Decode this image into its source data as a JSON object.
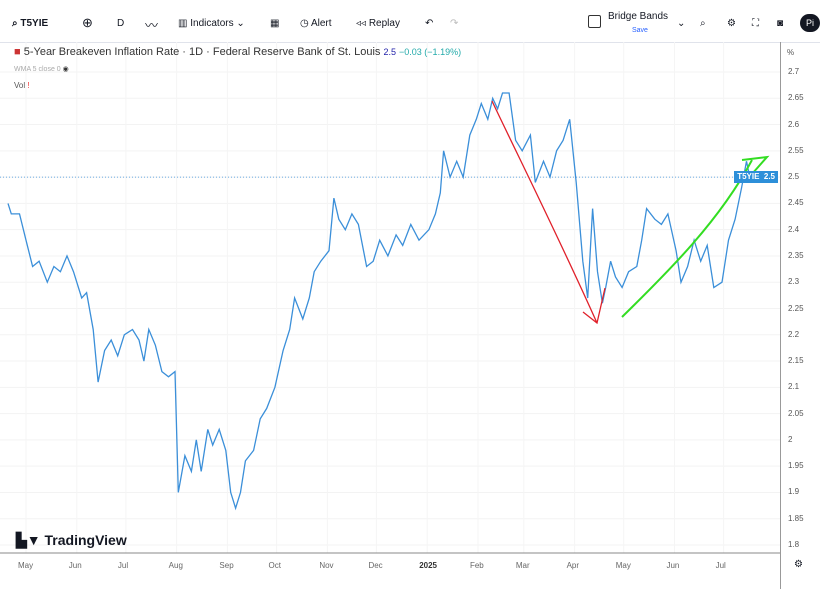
{
  "toolbar": {
    "symbol": "T5YIE",
    "interval": "D",
    "indicators": "Indicators",
    "alert": "Alert",
    "replay": "Replay",
    "layout_name": "Bridge Bands",
    "layout_sub": "Save",
    "avatar": "Pi"
  },
  "legend": {
    "title": "5-Year Breakeven Inflation Rate · 1D · Federal Reserve Bank of St. Louis",
    "last": "2.5",
    "change": "−0.03 (−1.19%)",
    "indicator": "WMA 5 close 0",
    "vol": "Vol"
  },
  "brand": "TradingView",
  "colors": {
    "line": "#3b8fd9",
    "red_drawing": "#e0202a",
    "green_drawing": "#33dd22",
    "price_label": "#2d8fd9"
  },
  "chart_data": {
    "type": "line",
    "ylabel": "%",
    "ylim": [
      1.8,
      2.7
    ],
    "xlim": [
      "2024-04-20",
      "2025-07-22"
    ],
    "grid": true,
    "yticks": [
      "2.7",
      "2.65",
      "2.6",
      "2.55",
      "2.5",
      "2.45",
      "2.4",
      "2.35",
      "2.3",
      "2.25",
      "2.2",
      "2.15",
      "2.1",
      "2.05",
      "2",
      "1.95",
      "1.9",
      "1.85",
      "1.8"
    ],
    "xticks": [
      {
        "label": "May",
        "date": "2024-05-01"
      },
      {
        "label": "Jun",
        "date": "2024-06-01"
      },
      {
        "label": "Jul",
        "date": "2024-07-01"
      },
      {
        "label": "Aug",
        "date": "2024-08-01"
      },
      {
        "label": "Sep",
        "date": "2024-09-01"
      },
      {
        "label": "Oct",
        "date": "2024-10-01"
      },
      {
        "label": "Nov",
        "date": "2024-11-01"
      },
      {
        "label": "Dec",
        "date": "2024-12-01"
      },
      {
        "label": "2025",
        "date": "2025-01-01"
      },
      {
        "label": "Feb",
        "date": "2025-02-01"
      },
      {
        "label": "Mar",
        "date": "2025-03-01"
      },
      {
        "label": "Apr",
        "date": "2025-04-01"
      },
      {
        "label": "May",
        "date": "2025-05-01"
      },
      {
        "label": "Jun",
        "date": "2025-06-01"
      },
      {
        "label": "Jul",
        "date": "2025-07-01"
      }
    ],
    "price_label": {
      "symbol": "T5YIE",
      "value": "2.5"
    },
    "series": [
      {
        "points": [
          [
            "2024-04-20",
            2.45
          ],
          [
            "2024-04-22",
            2.43
          ],
          [
            "2024-04-27",
            2.43
          ],
          [
            "2024-05-01",
            2.38
          ],
          [
            "2024-05-05",
            2.33
          ],
          [
            "2024-05-09",
            2.34
          ],
          [
            "2024-05-14",
            2.3
          ],
          [
            "2024-05-18",
            2.33
          ],
          [
            "2024-05-22",
            2.32
          ],
          [
            "2024-05-26",
            2.35
          ],
          [
            "2024-05-30",
            2.32
          ],
          [
            "2024-06-04",
            2.27
          ],
          [
            "2024-06-07",
            2.28
          ],
          [
            "2024-06-11",
            2.21
          ],
          [
            "2024-06-14",
            2.11
          ],
          [
            "2024-06-18",
            2.17
          ],
          [
            "2024-06-22",
            2.19
          ],
          [
            "2024-06-26",
            2.16
          ],
          [
            "2024-06-30",
            2.2
          ],
          [
            "2024-07-05",
            2.21
          ],
          [
            "2024-07-09",
            2.19
          ],
          [
            "2024-07-12",
            2.15
          ],
          [
            "2024-07-15",
            2.21
          ],
          [
            "2024-07-19",
            2.18
          ],
          [
            "2024-07-23",
            2.13
          ],
          [
            "2024-07-27",
            2.12
          ],
          [
            "2024-07-31",
            2.13
          ],
          [
            "2024-08-02",
            1.9
          ],
          [
            "2024-08-06",
            1.97
          ],
          [
            "2024-08-10",
            1.94
          ],
          [
            "2024-08-13",
            2.0
          ],
          [
            "2024-08-16",
            1.94
          ],
          [
            "2024-08-20",
            2.02
          ],
          [
            "2024-08-23",
            1.99
          ],
          [
            "2024-08-27",
            2.02
          ],
          [
            "2024-08-31",
            1.98
          ],
          [
            "2024-09-03",
            1.9
          ],
          [
            "2024-09-06",
            1.87
          ],
          [
            "2024-09-09",
            1.9
          ],
          [
            "2024-09-12",
            1.96
          ],
          [
            "2024-09-17",
            1.98
          ],
          [
            "2024-09-21",
            2.04
          ],
          [
            "2024-09-25",
            2.06
          ],
          [
            "2024-09-30",
            2.1
          ],
          [
            "2024-10-05",
            2.17
          ],
          [
            "2024-10-09",
            2.21
          ],
          [
            "2024-10-12",
            2.27
          ],
          [
            "2024-10-17",
            2.23
          ],
          [
            "2024-10-21",
            2.27
          ],
          [
            "2024-10-24",
            2.32
          ],
          [
            "2024-10-28",
            2.34
          ],
          [
            "2024-11-02",
            2.36
          ],
          [
            "2024-11-05",
            2.46
          ],
          [
            "2024-11-08",
            2.42
          ],
          [
            "2024-11-12",
            2.4
          ],
          [
            "2024-11-16",
            2.43
          ],
          [
            "2024-11-20",
            2.41
          ],
          [
            "2024-11-25",
            2.33
          ],
          [
            "2024-11-29",
            2.34
          ],
          [
            "2024-12-03",
            2.38
          ],
          [
            "2024-12-08",
            2.35
          ],
          [
            "2024-12-13",
            2.39
          ],
          [
            "2024-12-17",
            2.37
          ],
          [
            "2024-12-22",
            2.41
          ],
          [
            "2024-12-27",
            2.38
          ],
          [
            "2025-01-02",
            2.4
          ],
          [
            "2025-01-06",
            2.43
          ],
          [
            "2025-01-09",
            2.47
          ],
          [
            "2025-01-11",
            2.55
          ],
          [
            "2025-01-15",
            2.5
          ],
          [
            "2025-01-19",
            2.53
          ],
          [
            "2025-01-23",
            2.5
          ],
          [
            "2025-01-27",
            2.58
          ],
          [
            "2025-01-31",
            2.61
          ],
          [
            "2025-02-03",
            2.64
          ],
          [
            "2025-02-07",
            2.61
          ],
          [
            "2025-02-10",
            2.65
          ],
          [
            "2025-02-13",
            2.63
          ],
          [
            "2025-02-16",
            2.66
          ],
          [
            "2025-02-20",
            2.66
          ],
          [
            "2025-02-24",
            2.57
          ],
          [
            "2025-02-28",
            2.55
          ],
          [
            "2025-03-05",
            2.58
          ],
          [
            "2025-03-08",
            2.49
          ],
          [
            "2025-03-13",
            2.53
          ],
          [
            "2025-03-17",
            2.5
          ],
          [
            "2025-03-21",
            2.55
          ],
          [
            "2025-03-25",
            2.57
          ],
          [
            "2025-03-29",
            2.61
          ],
          [
            "2025-04-02",
            2.49
          ],
          [
            "2025-04-06",
            2.34
          ],
          [
            "2025-04-09",
            2.27
          ],
          [
            "2025-04-12",
            2.44
          ],
          [
            "2025-04-15",
            2.32
          ],
          [
            "2025-04-18",
            2.26
          ],
          [
            "2025-04-20",
            2.29
          ],
          [
            "2025-04-23",
            2.34
          ],
          [
            "2025-04-26",
            2.31
          ],
          [
            "2025-04-30",
            2.29
          ],
          [
            "2025-05-04",
            2.32
          ],
          [
            "2025-05-09",
            2.33
          ],
          [
            "2025-05-12",
            2.38
          ],
          [
            "2025-05-15",
            2.44
          ],
          [
            "2025-05-20",
            2.42
          ],
          [
            "2025-05-24",
            2.41
          ],
          [
            "2025-05-28",
            2.43
          ],
          [
            "2025-06-02",
            2.36
          ],
          [
            "2025-06-05",
            2.3
          ],
          [
            "2025-06-09",
            2.33
          ],
          [
            "2025-06-13",
            2.38
          ],
          [
            "2025-06-17",
            2.34
          ],
          [
            "2025-06-21",
            2.37
          ],
          [
            "2025-06-25",
            2.29
          ],
          [
            "2025-06-30",
            2.3
          ],
          [
            "2025-07-04",
            2.38
          ],
          [
            "2025-07-08",
            2.42
          ],
          [
            "2025-07-12",
            2.48
          ],
          [
            "2025-07-15",
            2.53
          ],
          [
            "2025-07-17",
            2.5
          ]
        ]
      }
    ]
  }
}
